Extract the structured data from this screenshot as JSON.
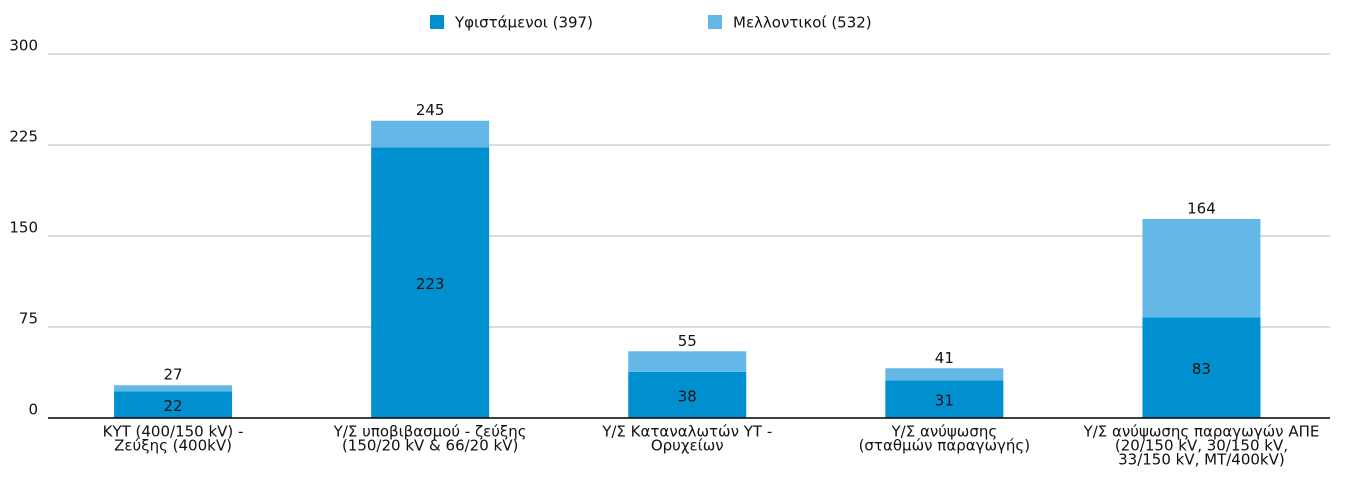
{
  "chart_data": {
    "type": "stacked_bar",
    "categories": [
      [
        "ΚΥΤ (400/150 kV) -",
        "Ζεύξης (400kV)"
      ],
      [
        "Υ/Σ υποβιβασμού - ζεύξης",
        "(150/20 kV & 66/20 kV)"
      ],
      [
        "Υ/Σ Καταναλωτών ΥΤ -",
        "Ορυχείων"
      ],
      [
        "Υ/Σ ανύψωσης",
        "(σταθμών παραγωγής)"
      ],
      [
        "Υ/Σ ανύψωσης παραγωγών ΑΠΕ",
        "(20/150 kV, 30/150 kV,",
        "33/150 kV, MT/400kV)"
      ]
    ],
    "series": [
      {
        "name": "Υφιστάμενοι (397)",
        "color": "#0090d0",
        "values": [
          22,
          223,
          38,
          31,
          83
        ]
      },
      {
        "name": "Μελλοντικοί (532)",
        "color": "#63b8e8",
        "values": [
          5,
          22,
          17,
          10,
          81
        ]
      }
    ],
    "totals": [
      27,
      245,
      55,
      41,
      164
    ],
    "ylim": [
      0,
      300
    ],
    "yticks": [
      0,
      75,
      150,
      225,
      300
    ],
    "grid": true,
    "legend": "top"
  }
}
